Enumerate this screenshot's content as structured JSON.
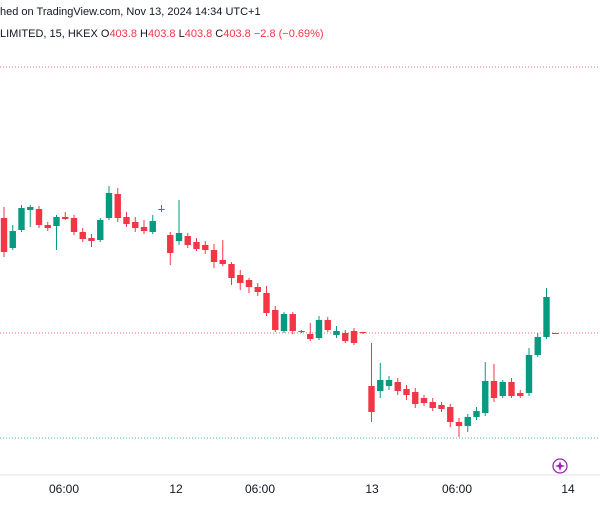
{
  "header": {
    "caption": "hed on TradingView.com, Nov 13, 2024 14:34 UTC+1"
  },
  "legend": {
    "symbol": "LIMITED, 15, HKEX",
    "open_label": "O",
    "open": 403.8,
    "high_label": "H",
    "high": 403.8,
    "low_label": "L",
    "low": 403.8,
    "close_label": "C",
    "close": 403.8,
    "change": "−2.8 (−0.69%)"
  },
  "chart_data": {
    "type": "candlestick",
    "up_color": "#089981",
    "down_color": "#f23645",
    "ylim": [
      396.95,
      420.45
    ],
    "x_axis_labels": [
      "06:00",
      "12",
      "06:00",
      "13",
      "06:00",
      "14"
    ],
    "open": [
      409.55,
      408.05,
      408.95,
      409.95,
      410.0,
      409.2,
      409.15,
      409.6,
      409.55,
      408.85,
      408.55,
      408.45,
      409.55,
      410.75,
      409.6,
      409.35,
      409.1,
      408.85,
      409.95,
      408.7,
      408.4,
      408.65,
      408.35,
      408.2,
      407.95,
      407.45,
      407.25,
      406.7,
      406.45,
      406.1,
      405.8,
      404.95,
      403.9,
      404.75,
      403.9,
      403.75,
      403.55,
      404.45,
      403.7,
      403.8,
      403.9,
      403.85,
      401.15,
      400.9,
      401.15,
      401.35,
      401.0,
      400.85,
      400.55,
      400.35,
      400.2,
      400.1,
      399.35,
      399.15,
      399.6,
      399.8,
      401.4,
      400.65,
      401.35,
      400.8,
      400.8,
      402.7,
      403.6,
      403.8
    ],
    "high": [
      410.1,
      409.2,
      410.2,
      410.2,
      410.15,
      409.35,
      409.7,
      409.85,
      409.7,
      409.05,
      408.75,
      409.55,
      411.15,
      411.05,
      409.85,
      409.6,
      409.45,
      409.7,
      410.2,
      408.85,
      410.45,
      408.8,
      408.55,
      408.4,
      408.25,
      408.45,
      407.35,
      406.95,
      406.55,
      406.3,
      406.15,
      405.15,
      404.85,
      404.85,
      403.95,
      404.3,
      404.65,
      404.6,
      404.15,
      403.95,
      404.05,
      403.85,
      403.3,
      402.3,
      401.65,
      401.55,
      401.2,
      401.05,
      400.7,
      400.55,
      400.35,
      400.25,
      399.55,
      399.75,
      400.1,
      402.35,
      402.25,
      401.45,
      401.55,
      400.95,
      403.05,
      403.8,
      406.05,
      403.8
    ],
    "low": [
      407.6,
      407.95,
      408.85,
      409.1,
      409.05,
      408.9,
      407.95,
      409.45,
      408.7,
      408.35,
      408.1,
      408.35,
      409.45,
      409.35,
      409.1,
      408.85,
      408.75,
      408.75,
      409.85,
      407.2,
      408.2,
      408.05,
      407.9,
      407.75,
      407.05,
      407.15,
      406.2,
      405.95,
      405.8,
      405.65,
      404.65,
      403.85,
      403.8,
      403.75,
      403.8,
      403.4,
      403.45,
      403.85,
      403.55,
      403.3,
      403.2,
      403.75,
      399.35,
      400.55,
      400.95,
      400.7,
      400.45,
      400.05,
      400.15,
      399.9,
      399.85,
      399.1,
      398.6,
      398.85,
      399.45,
      399.65,
      400.35,
      400.55,
      400.55,
      400.55,
      400.65,
      402.6,
      403.5,
      403.8
    ],
    "close": [
      407.85,
      408.9,
      410.05,
      410.1,
      409.2,
      409.05,
      409.6,
      409.5,
      408.85,
      408.5,
      408.4,
      409.45,
      410.8,
      409.55,
      409.25,
      409.05,
      408.9,
      409.4,
      410.0,
      407.8,
      408.8,
      408.2,
      408.0,
      407.95,
      407.35,
      407.25,
      406.55,
      406.3,
      406.1,
      405.85,
      404.8,
      403.95,
      404.75,
      403.9,
      403.85,
      403.5,
      404.45,
      403.95,
      403.9,
      403.4,
      403.3,
      403.8,
      399.85,
      401.45,
      401.45,
      400.9,
      400.7,
      400.25,
      400.3,
      400.05,
      400.0,
      399.35,
      399.15,
      399.6,
      399.9,
      401.4,
      400.55,
      401.35,
      400.65,
      400.65,
      402.7,
      403.6,
      405.6,
      403.8
    ]
  }
}
